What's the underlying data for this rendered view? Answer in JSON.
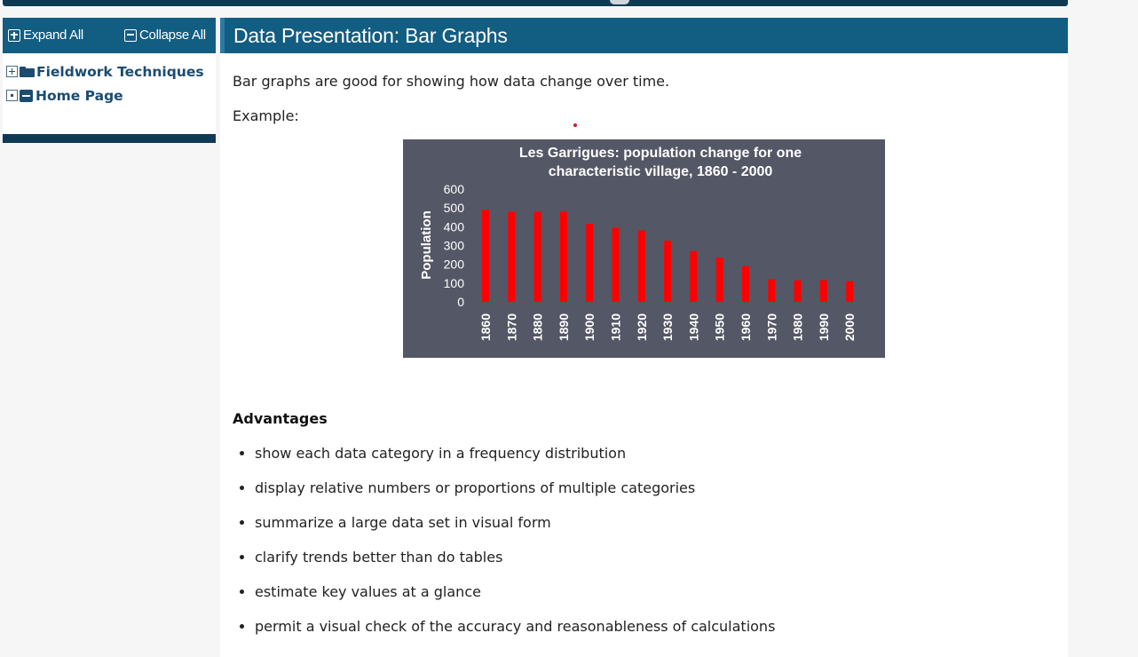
{
  "sidebar": {
    "expand_all": "Expand All",
    "collapse_all": "Collapse All",
    "tree": [
      {
        "label": "Fieldwork Techniques",
        "toggle_icon": "plus-box-icon",
        "icon": "folder-icon"
      },
      {
        "label": "Home Page",
        "toggle_icon": "dot-box-icon",
        "icon": "minus-icon"
      }
    ]
  },
  "main": {
    "title": "Data Presentation: Bar Graphs",
    "intro": "Bar graphs are good for showing how data change over time.",
    "example_label": "Example:",
    "advantages_heading": "Advantages",
    "advantages": [
      "show each data category in a frequency distribution",
      "display relative numbers or proportions of multiple categories",
      "summarize a large data set in visual form",
      "clarify trends better than do tables",
      "estimate key values at a glance",
      "permit a visual check of the accuracy and reasonableness of calculations"
    ]
  },
  "colors": {
    "header_blue": "#125d82",
    "dark_navy": "#0f3a56",
    "chart_bg": "#545766",
    "bar_red": "#ff0000"
  },
  "chart_data": {
    "type": "bar",
    "title": "Les Garrigues: population change for one characteristic village, 1860 - 2000",
    "title_lines": [
      "Les Garrigues: population change for one",
      "characteristic village, 1860 - 2000"
    ],
    "xlabel": "",
    "ylabel": "Population",
    "ylim": [
      0,
      600
    ],
    "yticks": [
      0,
      100,
      200,
      300,
      400,
      500,
      600
    ],
    "grid": false,
    "categories": [
      "1860",
      "1870",
      "1880",
      "1890",
      "1900",
      "1910",
      "1920",
      "1930",
      "1940",
      "1950",
      "1960",
      "1970",
      "1980",
      "1990",
      "2000"
    ],
    "values": [
      490,
      480,
      480,
      480,
      415,
      395,
      380,
      325,
      270,
      235,
      190,
      120,
      115,
      115,
      110
    ]
  }
}
